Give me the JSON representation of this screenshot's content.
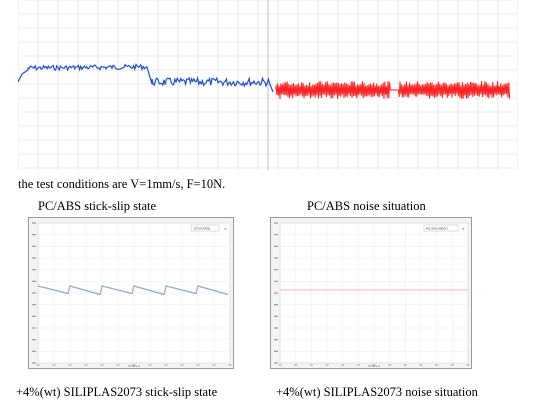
{
  "caption_conditions": "the test conditions are V=1mm/s, F=10N.",
  "label_top_left": "PC/ABS stick-slip state",
  "label_top_right": "PC/ABS noise situation",
  "label_bottom_left": "+4%(wt) SILIPLAS2073 stick-slip state",
  "label_bottom_right": "+4%(wt) SILIPLAS2073 noise situation",
  "colors": {
    "pcabs_stick_slip": "#1f4fd1",
    "pcabs_noise": "#ff2222",
    "siliplas_stick_slip": "#8fa9c8",
    "siliplas_noise": "#ee9a9a",
    "grid": "#dcdcdc"
  },
  "panels": {
    "bottom_left_title": "Stick/Slip",
    "bottom_right_title": "Acceleration",
    "x_axis_label": "Time (s)"
  }
}
